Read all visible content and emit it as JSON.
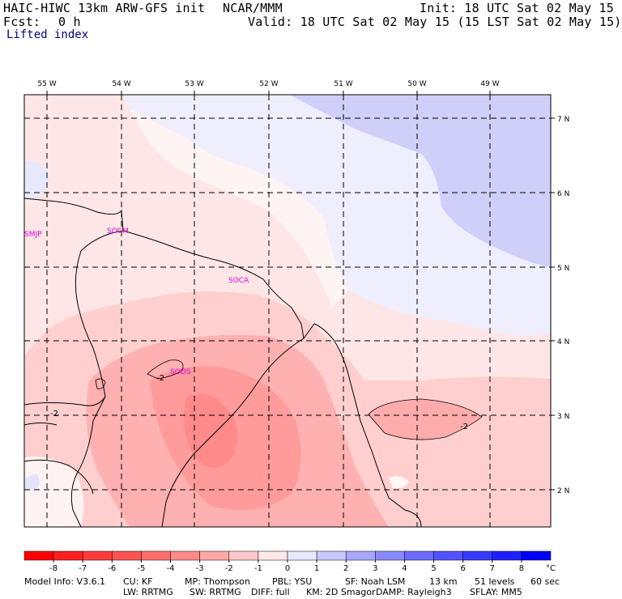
{
  "header": {
    "model_title": "HAIC-HIWC 13km ARW-GFS init",
    "center": "NCAR/MMM",
    "init": "Init: 18 UTC Sat 02 May 15",
    "fcst_label": "Fcst:",
    "fcst_value": "0 h",
    "valid": "Valid: 18 UTC Sat 02 May 15 (15 LST Sat 02 May 15)",
    "field": "Lifted index"
  },
  "map": {
    "lon_labels": [
      "55 W",
      "54 W",
      "53 W",
      "52 W",
      "51 W",
      "50 W",
      "49 W"
    ],
    "lat_labels": [
      "7 N",
      "6 N",
      "5 N",
      "4 N",
      "3 N",
      "2 N"
    ],
    "stations": [
      "SMJP",
      "SOCM",
      "SOCA",
      "SODS"
    ],
    "contour_labels": [
      "-2",
      "-2",
      "-2"
    ]
  },
  "colorbar": {
    "ticks": [
      "-8",
      "-7",
      "-6",
      "-5",
      "-4",
      "-3",
      "-2",
      "-1",
      "0",
      "1",
      "2",
      "3",
      "4",
      "5",
      "6",
      "7",
      "8"
    ],
    "unit": "°C",
    "colors": [
      "#ff0000",
      "#ff2020",
      "#ff3a3a",
      "#ff5252",
      "#ff6c6c",
      "#ff8a8a",
      "#ffa8a8",
      "#ffc8c8",
      "#ffe8e8",
      "#e8e8ff",
      "#c8c8ff",
      "#a8a8ff",
      "#8a8aff",
      "#6c6cff",
      "#5252ff",
      "#3a3aff",
      "#2020ff",
      "#0000ff"
    ]
  },
  "footer": {
    "line1": [
      {
        "label": "Model Info: V3.6.1"
      },
      {
        "label": "CU: KF"
      },
      {
        "label": "MP: Thompson"
      },
      {
        "label": "PBL: YSU"
      },
      {
        "label": "SF: Noah LSM"
      },
      {
        "label": "13 km"
      },
      {
        "label": "51 levels"
      },
      {
        "label": "60 sec"
      }
    ],
    "line2": [
      {
        "label": "LW: RRTMG"
      },
      {
        "label": "SW: RRTMG"
      },
      {
        "label": "DIFF: full"
      },
      {
        "label": "KM: 2D Smagor"
      },
      {
        "label": "DAMP: Rayleigh3"
      },
      {
        "label": "SFLAY: MM5"
      }
    ]
  }
}
